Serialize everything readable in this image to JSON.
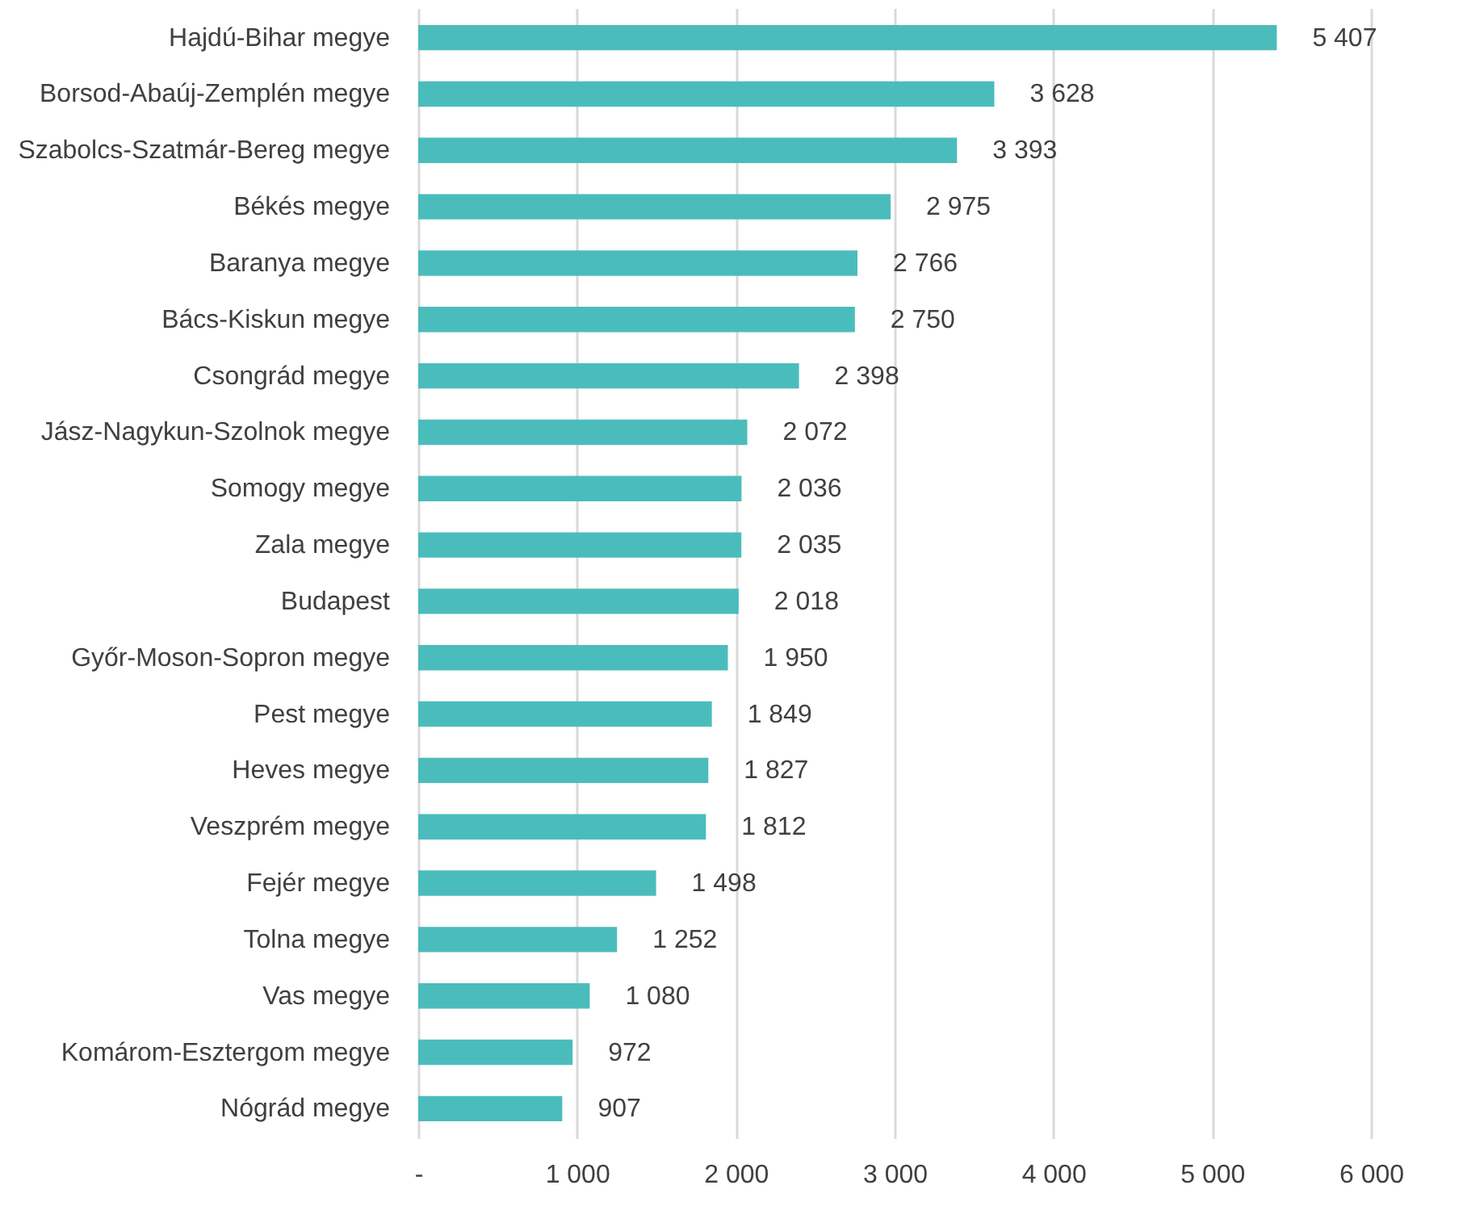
{
  "chart_data": {
    "type": "bar",
    "orientation": "horizontal",
    "categories": [
      "Hajdú-Bihar megye",
      "Borsod-Abaúj-Zemplén megye",
      "Szabolcs-Szatmár-Bereg megye",
      "Békés megye",
      "Baranya megye",
      "Bács-Kiskun megye",
      "Csongrád megye",
      "Jász-Nagykun-Szolnok megye",
      "Somogy megye",
      "Zala megye",
      "Budapest",
      "Győr-Moson-Sopron megye",
      "Pest megye",
      "Heves megye",
      "Veszprém megye",
      "Fejér megye",
      "Tolna megye",
      "Vas megye",
      "Komárom-Esztergom megye",
      "Nógrád megye"
    ],
    "values": [
      5407,
      3628,
      3393,
      2975,
      2766,
      2750,
      2398,
      2072,
      2036,
      2035,
      2018,
      1950,
      1849,
      1827,
      1812,
      1498,
      1252,
      1080,
      972,
      907
    ],
    "value_labels": [
      "5 407",
      "3 628",
      "3 393",
      "2 975",
      "2 766",
      "2 750",
      "2 398",
      "2 072",
      "2 036",
      "2 035",
      "2 018",
      "1 950",
      "1 849",
      "1 827",
      "1 812",
      "1 498",
      "1 252",
      "1 080",
      "972",
      "907"
    ],
    "color": "#4bbcbc",
    "xlim": [
      0,
      6000
    ],
    "xticks": [
      {
        "value": 0,
        "label": "-"
      },
      {
        "value": 1000,
        "label": "1 000"
      },
      {
        "value": 2000,
        "label": "2 000"
      },
      {
        "value": 3000,
        "label": "3 000"
      },
      {
        "value": 4000,
        "label": "4 000"
      },
      {
        "value": 5000,
        "label": "5 000"
      },
      {
        "value": 6000,
        "label": "6 000"
      }
    ],
    "grid": "x"
  }
}
